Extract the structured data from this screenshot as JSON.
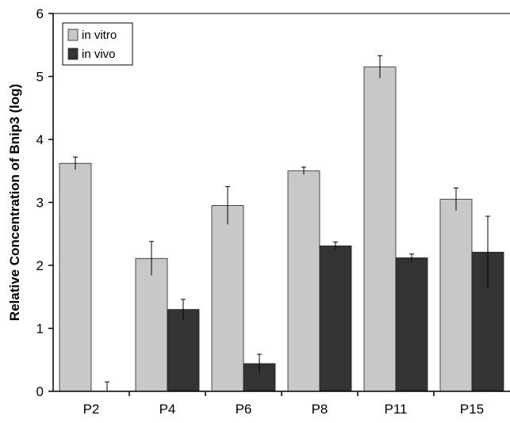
{
  "chart_data": {
    "type": "bar",
    "title": "",
    "xlabel": "",
    "ylabel": "Relative Concentration of Bnip3 (log)",
    "ylim": [
      0,
      6
    ],
    "yticks": [
      "0",
      "1",
      "2",
      "3",
      "4",
      "5",
      "6"
    ],
    "categories": [
      "P2",
      "P4",
      "P6",
      "P8",
      "P11",
      "P15"
    ],
    "series": [
      {
        "name": "in vitro",
        "color": "#c8c8c8",
        "values": [
          3.62,
          2.11,
          2.95,
          3.5,
          5.15,
          3.05
        ],
        "errors": [
          0.1,
          0.27,
          0.3,
          0.06,
          0.18,
          0.18
        ]
      },
      {
        "name": "in vivo",
        "color": "#333333",
        "values": [
          0.0,
          1.3,
          0.44,
          2.31,
          2.12,
          2.21
        ],
        "errors": [
          0.15,
          0.16,
          0.15,
          0.06,
          0.06,
          0.57
        ]
      }
    ],
    "legend_position": "top-left",
    "grid": false,
    "error_bars": true
  }
}
